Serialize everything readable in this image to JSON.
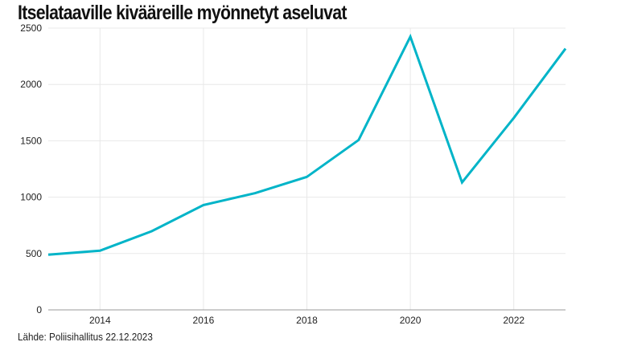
{
  "chart_data": {
    "type": "line",
    "title": "Itselataaville kivääreille myönnetyt aseluvat",
    "source": "Lähde: Poliisihallitus 22.12.2023",
    "x": [
      2013,
      2014,
      2015,
      2016,
      2017,
      2018,
      2019,
      2020,
      2021,
      2022,
      2023
    ],
    "values": [
      490,
      525,
      698,
      930,
      1036,
      1180,
      1507,
      2424,
      1131,
      1703,
      2318
    ],
    "xlim": [
      2013,
      2023
    ],
    "ylim": [
      0,
      2500
    ],
    "x_ticks": [
      "2014",
      "2016",
      "2018",
      "2020",
      "2022"
    ],
    "y_ticks": [
      "0",
      "500",
      "1000",
      "1500",
      "2000",
      "2500"
    ],
    "grid": true,
    "line_color": "#00b4c8"
  }
}
